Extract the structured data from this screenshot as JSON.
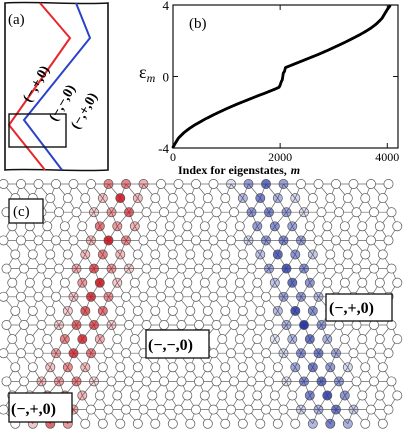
{
  "panel_a": {
    "tag": "(a)",
    "labels": [
      "(−,+,0)",
      "(−,−,0)",
      "(−,+,0)"
    ],
    "colors": {
      "left_line": "#e8262b",
      "right_line": "#2a43c8"
    }
  },
  "panel_b": {
    "tag": "(b)",
    "ylabel": "ε",
    "ylabel_sub": "m",
    "xlabel": "Index for eigenstates,",
    "xlabel_var": "m"
  },
  "chart_data": {
    "type": "scatter",
    "title": "",
    "xlabel": "Index for eigenstates, m",
    "ylabel": "ε_m",
    "xlim": [
      0,
      4200
    ],
    "ylim": [
      -4,
      4
    ],
    "xticks": [
      0,
      2000,
      4000
    ],
    "yticks": [
      -4,
      0,
      4
    ],
    "grid": false,
    "series": [
      {
        "color": "#000000",
        "points": [
          [
            0,
            -3.95
          ],
          [
            100,
            -3.45
          ],
          [
            200,
            -3.15
          ],
          [
            300,
            -2.92
          ],
          [
            400,
            -2.72
          ],
          [
            500,
            -2.55
          ],
          [
            600,
            -2.38
          ],
          [
            700,
            -2.23
          ],
          [
            800,
            -2.08
          ],
          [
            900,
            -1.94
          ],
          [
            1000,
            -1.8
          ],
          [
            1100,
            -1.67
          ],
          [
            1200,
            -1.54
          ],
          [
            1300,
            -1.42
          ],
          [
            1400,
            -1.3
          ],
          [
            1500,
            -1.18
          ],
          [
            1600,
            -1.06
          ],
          [
            1700,
            -0.95
          ],
          [
            1800,
            -0.83
          ],
          [
            1900,
            -0.71
          ],
          [
            1980,
            -0.6
          ],
          [
            2000,
            -0.48
          ],
          [
            2020,
            -0.3
          ],
          [
            2040,
            -0.18
          ],
          [
            2060,
            0.2
          ],
          [
            2080,
            0.28
          ],
          [
            2100,
            0.5
          ],
          [
            2200,
            0.62
          ],
          [
            2300,
            0.74
          ],
          [
            2400,
            0.86
          ],
          [
            2500,
            0.98
          ],
          [
            2600,
            1.1
          ],
          [
            2700,
            1.22
          ],
          [
            2800,
            1.35
          ],
          [
            2900,
            1.48
          ],
          [
            3000,
            1.62
          ],
          [
            3100,
            1.76
          ],
          [
            3200,
            1.9
          ],
          [
            3300,
            2.05
          ],
          [
            3400,
            2.2
          ],
          [
            3500,
            2.36
          ],
          [
            3600,
            2.53
          ],
          [
            3700,
            2.72
          ],
          [
            3800,
            2.95
          ],
          [
            3900,
            3.25
          ],
          [
            4000,
            3.75
          ],
          [
            4050,
            3.95
          ]
        ]
      }
    ]
  },
  "panel_c": {
    "tag": "(c)",
    "labels": {
      "right": "(−,+,0)",
      "middle": "(−,−,0)",
      "bottom_left": "(−,+,0)"
    },
    "colors": {
      "red": "#c8141e",
      "blue": "#2535a0",
      "bond": "#666666"
    }
  }
}
